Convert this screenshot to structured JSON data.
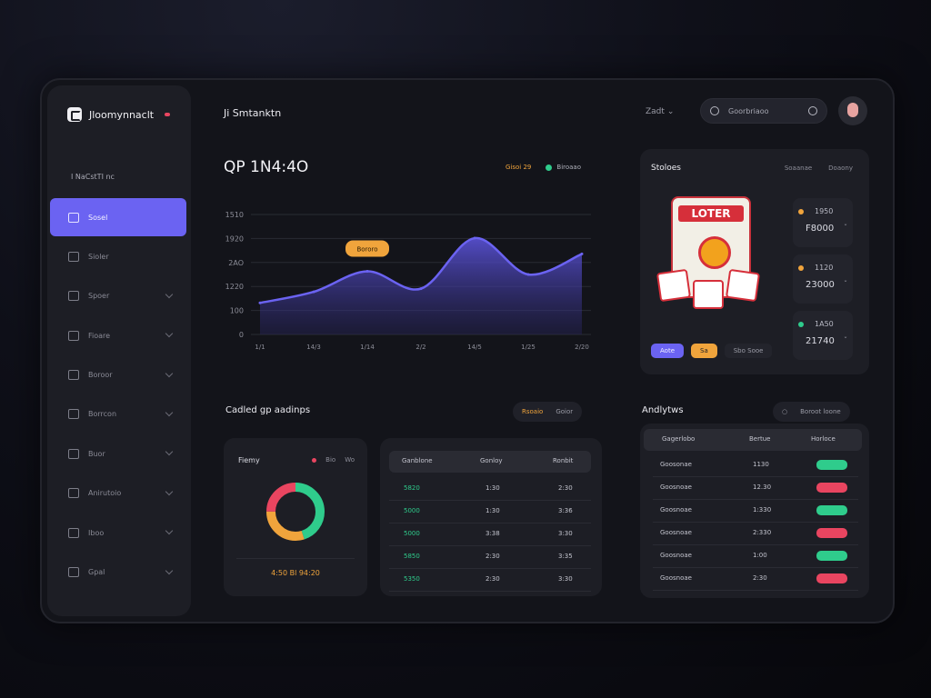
{
  "sidebar": {
    "app_name": "Jloomynnaclt",
    "section_label": "I NaCstTI nc",
    "items": [
      {
        "label": "Sosel",
        "active": true
      },
      {
        "label": "Sioler"
      },
      {
        "label": "Spoer"
      },
      {
        "label": "Fioare"
      },
      {
        "label": "Boroor"
      },
      {
        "label": "Borrcon"
      },
      {
        "label": "Buor"
      },
      {
        "label": "Anirutoio"
      },
      {
        "label": "Iboo"
      },
      {
        "label": "Gpal"
      }
    ]
  },
  "header": {
    "title": "Ji Smtanktn",
    "zoom": "Zadt",
    "search_placeholder": "Goorbriaoo",
    "avatar": "avatar-icon"
  },
  "main": {
    "value": "QP 1N4:4O",
    "legend_orange": "Gisoi 29",
    "legend_green": "Biroaao",
    "tooltip": "Bororo"
  },
  "chart_data": {
    "type": "area",
    "x": [
      "1/1",
      "14/3",
      "1/14",
      "2/2",
      "14/5",
      "1/25",
      "2/20"
    ],
    "values": [
      100,
      135,
      200,
      145,
      305,
      190,
      255
    ],
    "y_ticks": [
      "0",
      "100",
      "1220",
      "2AO",
      "1920",
      "1510"
    ],
    "x_ticks": [
      "1/1",
      "14/3",
      "1/14",
      "2/2",
      "14/5",
      "1/25",
      "2/20"
    ],
    "ylim": [
      0,
      380
    ],
    "grid": true,
    "color": "#6b63f2"
  },
  "statues": {
    "title": "Stoloes",
    "tab1": "Soaanae",
    "tab2": "Doaony",
    "lottery_title": "LOTER",
    "tickets": [
      {
        "top": "1950",
        "val": "F8000",
        "dot": "#f0a43c"
      },
      {
        "top": "1120",
        "val": "23000",
        "dot": "#f0a43c"
      },
      {
        "top": "1A50",
        "val": "21740",
        "dot": "#2fcc8c"
      }
    ],
    "btn1": "Aote",
    "btn2": "Sa",
    "btn3": "Sbo Sooe"
  },
  "bottom_left": {
    "title": "Cadled gp aadinps",
    "filter1": "Rsoaio",
    "filter2": "Goior",
    "ring_title": "Fiemy",
    "ring_legend1": "Bio",
    "ring_legend2": "Wo",
    "ring_footer": "4:50 Bl 94:20",
    "ring_segments": [
      {
        "value": 45,
        "color": "#2fcc8c"
      },
      {
        "value": 30,
        "color": "#f0a43c"
      },
      {
        "value": 25,
        "color": "#e94560"
      }
    ]
  },
  "table": {
    "headers": [
      "Ganblone",
      "Gonloy",
      "Ronbit"
    ],
    "rows": [
      [
        "5820",
        "1:30",
        "2:30"
      ],
      [
        "5000",
        "1:30",
        "3:36"
      ],
      [
        "5000",
        "3:38",
        "3:30"
      ],
      [
        "5850",
        "2:30",
        "3:35"
      ],
      [
        "5350",
        "2:30",
        "3:30"
      ]
    ]
  },
  "analytics": {
    "title": "Andlytws",
    "filter": "Boroot loone",
    "headers": [
      "Gagerlobo",
      "Bertue",
      "Horloce"
    ],
    "rows": [
      {
        "name": "Goosonae",
        "val": "1130",
        "color": "#2fcc8c"
      },
      {
        "name": "Goosnoae",
        "val": "12.30",
        "color": "#e94560"
      },
      {
        "name": "Goosnoae",
        "val": "1:330",
        "color": "#2fcc8c"
      },
      {
        "name": "Goosnoae",
        "val": "2:330",
        "color": "#e94560"
      },
      {
        "name": "Goosnoae",
        "val": "1:00",
        "color": "#2fcc8c"
      },
      {
        "name": "Goosnoae",
        "val": "2:30",
        "color": "#e94560"
      }
    ]
  }
}
